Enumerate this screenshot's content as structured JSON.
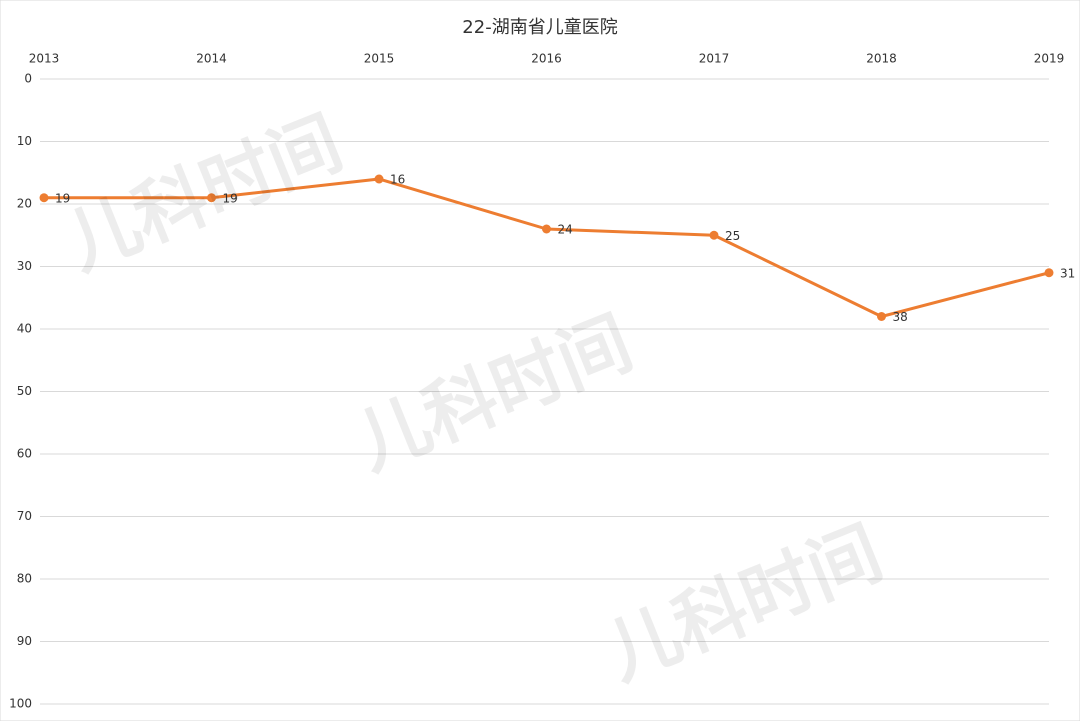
{
  "chart_data": {
    "type": "line",
    "title": "22-湖南省儿童医院",
    "categories": [
      "2013",
      "2014",
      "2015",
      "2016",
      "2017",
      "2018",
      "2019"
    ],
    "series": [
      {
        "name": "22-湖南省儿童医院",
        "color": "#ed7d31",
        "values": [
          19,
          19,
          16,
          24,
          25,
          38,
          31
        ]
      }
    ],
    "ylim": [
      0,
      100
    ],
    "yticks": [
      0,
      10,
      20,
      30,
      40,
      50,
      60,
      70,
      80,
      90,
      100
    ],
    "y_inverted": true,
    "x_axis_position": "top",
    "grid": true,
    "data_labels": true
  },
  "watermark": "儿科时间"
}
